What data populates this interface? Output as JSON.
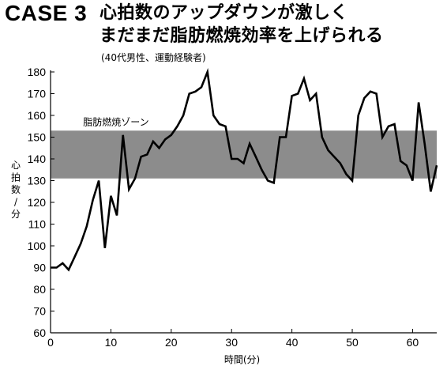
{
  "heading": {
    "case_label": "CASE 3",
    "title_line_1": "心拍数のアップダウンが激しく",
    "title_line_2": "まだまだ脂肪燃焼効率を上げられる",
    "subtitle": "(40代男性、運動経験者)"
  },
  "chart_data": {
    "type": "line",
    "xlabel": "時間(分)",
    "ylabel": "心拍数/分",
    "xlim": [
      0,
      64
    ],
    "ylim": [
      60,
      180
    ],
    "xticks": [
      0,
      10,
      20,
      30,
      40,
      50,
      60
    ],
    "yticks": [
      60,
      70,
      80,
      90,
      100,
      110,
      120,
      130,
      140,
      150,
      160,
      170,
      180
    ],
    "grid": false,
    "legend": "none",
    "band": {
      "label": "脂肪燃焼ゾーン",
      "from": 131,
      "to": 153,
      "color": "#8c8c8c"
    },
    "series": [
      {
        "line_color": "#000000",
        "x": [
          0,
          1,
          2,
          3,
          4,
          5,
          6,
          7,
          8,
          9,
          10,
          11,
          12,
          13,
          14,
          15,
          16,
          17,
          18,
          19,
          20,
          21,
          22,
          23,
          24,
          25,
          26,
          27,
          28,
          29,
          30,
          31,
          32,
          33,
          34,
          35,
          36,
          37,
          38,
          39,
          40,
          41,
          42,
          43,
          44,
          45,
          46,
          47,
          48,
          49,
          50,
          51,
          52,
          53,
          54,
          55,
          56,
          57,
          58,
          59,
          60,
          61,
          62,
          63,
          64
        ],
        "y": [
          90,
          90,
          92,
          89,
          95,
          101,
          109,
          121,
          130,
          99,
          123,
          114,
          151,
          126,
          131,
          141,
          142,
          148,
          145,
          149,
          151,
          155,
          160,
          170,
          171,
          173,
          180,
          160,
          156,
          155,
          140,
          140,
          138,
          147,
          141,
          135,
          130,
          129,
          150,
          150,
          169,
          170,
          177,
          167,
          170,
          150,
          144,
          141,
          138,
          133,
          130,
          160,
          168,
          171,
          170,
          150,
          155,
          156,
          139,
          137,
          130,
          166,
          147,
          125,
          137
        ]
      }
    ]
  }
}
